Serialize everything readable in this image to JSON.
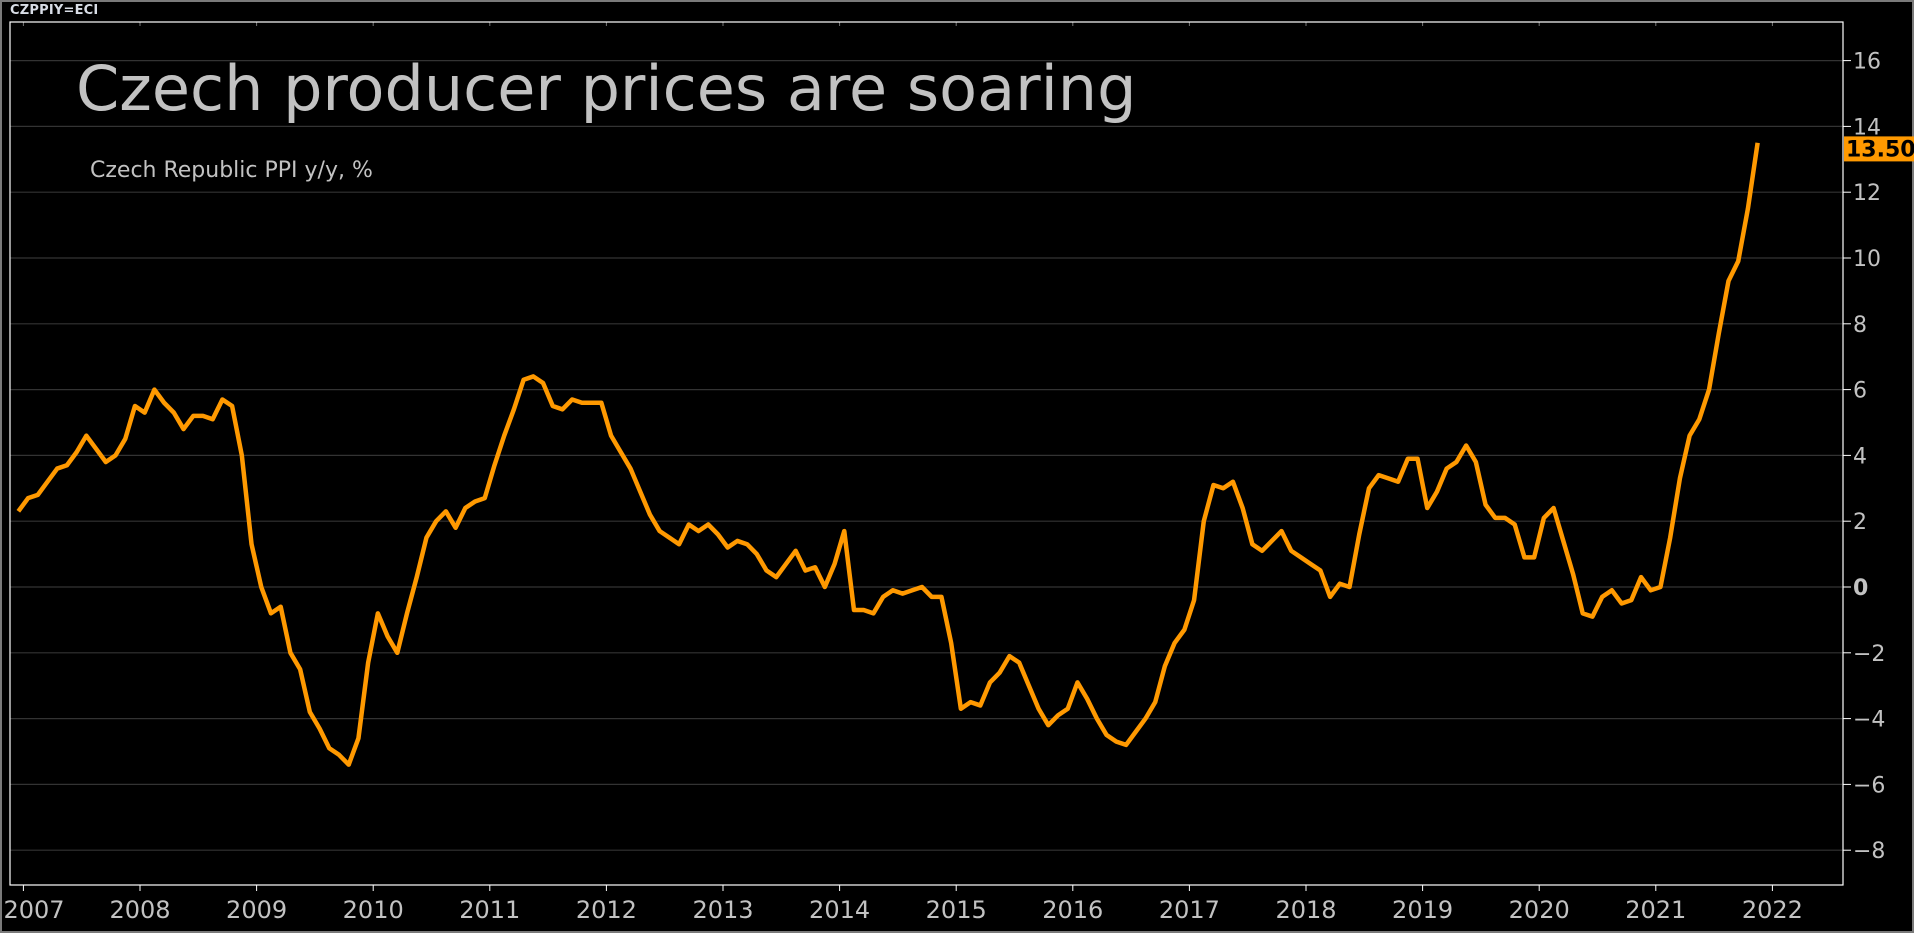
{
  "header": {
    "ticker": "CZPPIY=ECI"
  },
  "chart_data": {
    "type": "line",
    "title": "Czech producer prices are soaring",
    "subtitle": "Czech Republic PPI y/y, %",
    "xlabel": "",
    "ylabel": "",
    "x_ticks": [
      "2007",
      "2008",
      "2009",
      "2010",
      "2011",
      "2012",
      "2013",
      "2014",
      "2015",
      "2016",
      "2017",
      "2018",
      "2019",
      "2020",
      "2021",
      "2022"
    ],
    "y_ticks": [
      16,
      14,
      12,
      10,
      8,
      6,
      4,
      2,
      0,
      -2,
      -4,
      -6,
      -8
    ],
    "ylim": [
      -9,
      17
    ],
    "xlim": [
      "2006-11",
      "2022-08"
    ],
    "grid": true,
    "y_axis_side": "right",
    "last_value_label": "13.50",
    "colors": {
      "line": "#ff9900",
      "grid": "#333333",
      "background": "#000000",
      "text": "#c2c2c2"
    },
    "series": [
      {
        "start": "2006-12",
        "frequency": "monthly",
        "values": [
          2.3,
          2.7,
          2.8,
          3.2,
          3.6,
          3.7,
          4.1,
          4.6,
          4.2,
          3.8,
          4.0,
          4.5,
          5.5,
          5.3,
          6.0,
          5.6,
          5.3,
          4.8,
          5.2,
          5.2,
          5.1,
          5.7,
          5.5,
          4.0,
          1.3,
          0.0,
          -0.8,
          -0.6,
          -2.0,
          -2.5,
          -3.8,
          -4.3,
          -4.9,
          -5.1,
          -5.4,
          -4.6,
          -2.3,
          -0.8,
          -1.5,
          -2.0,
          -0.8,
          0.3,
          1.5,
          2.0,
          2.3,
          1.8,
          2.4,
          2.6,
          2.7,
          3.7,
          4.6,
          5.4,
          6.3,
          6.4,
          6.2,
          5.5,
          5.4,
          5.7,
          5.6,
          5.6,
          5.6,
          4.6,
          4.1,
          3.6,
          2.9,
          2.2,
          1.7,
          1.5,
          1.3,
          1.9,
          1.7,
          1.9,
          1.6,
          1.2,
          1.4,
          1.3,
          1.0,
          0.5,
          0.3,
          0.7,
          1.1,
          0.5,
          0.6,
          0.0,
          0.7,
          1.7,
          -0.7,
          -0.7,
          -0.8,
          -0.3,
          -0.1,
          -0.2,
          -0.1,
          0.0,
          -0.3,
          -0.3,
          -1.7,
          -3.7,
          -3.5,
          -3.6,
          -2.9,
          -2.6,
          -2.1,
          -2.3,
          -3.0,
          -3.7,
          -4.2,
          -3.9,
          -3.7,
          -2.9,
          -3.4,
          -4.0,
          -4.5,
          -4.7,
          -4.8,
          -4.4,
          -4.0,
          -3.5,
          -2.4,
          -1.7,
          -1.3,
          -0.4,
          2.0,
          3.1,
          3.0,
          3.2,
          2.4,
          1.3,
          1.1,
          1.4,
          1.7,
          1.1,
          0.9,
          0.7,
          0.5,
          -0.3,
          0.1,
          0.0,
          1.6,
          3.0,
          3.4,
          3.3,
          3.2,
          3.9,
          3.9,
          2.4,
          2.9,
          3.6,
          3.8,
          4.3,
          3.8,
          2.5,
          2.1,
          2.1,
          1.9,
          0.9,
          0.9,
          2.1,
          2.4,
          1.4,
          0.4,
          -0.8,
          -0.9,
          -0.3,
          -0.1,
          -0.5,
          -0.4,
          0.3,
          -0.1,
          0.0,
          1.5,
          3.3,
          4.6,
          5.1,
          6.0,
          7.7,
          9.3,
          9.9,
          11.5,
          13.5
        ]
      }
    ]
  }
}
